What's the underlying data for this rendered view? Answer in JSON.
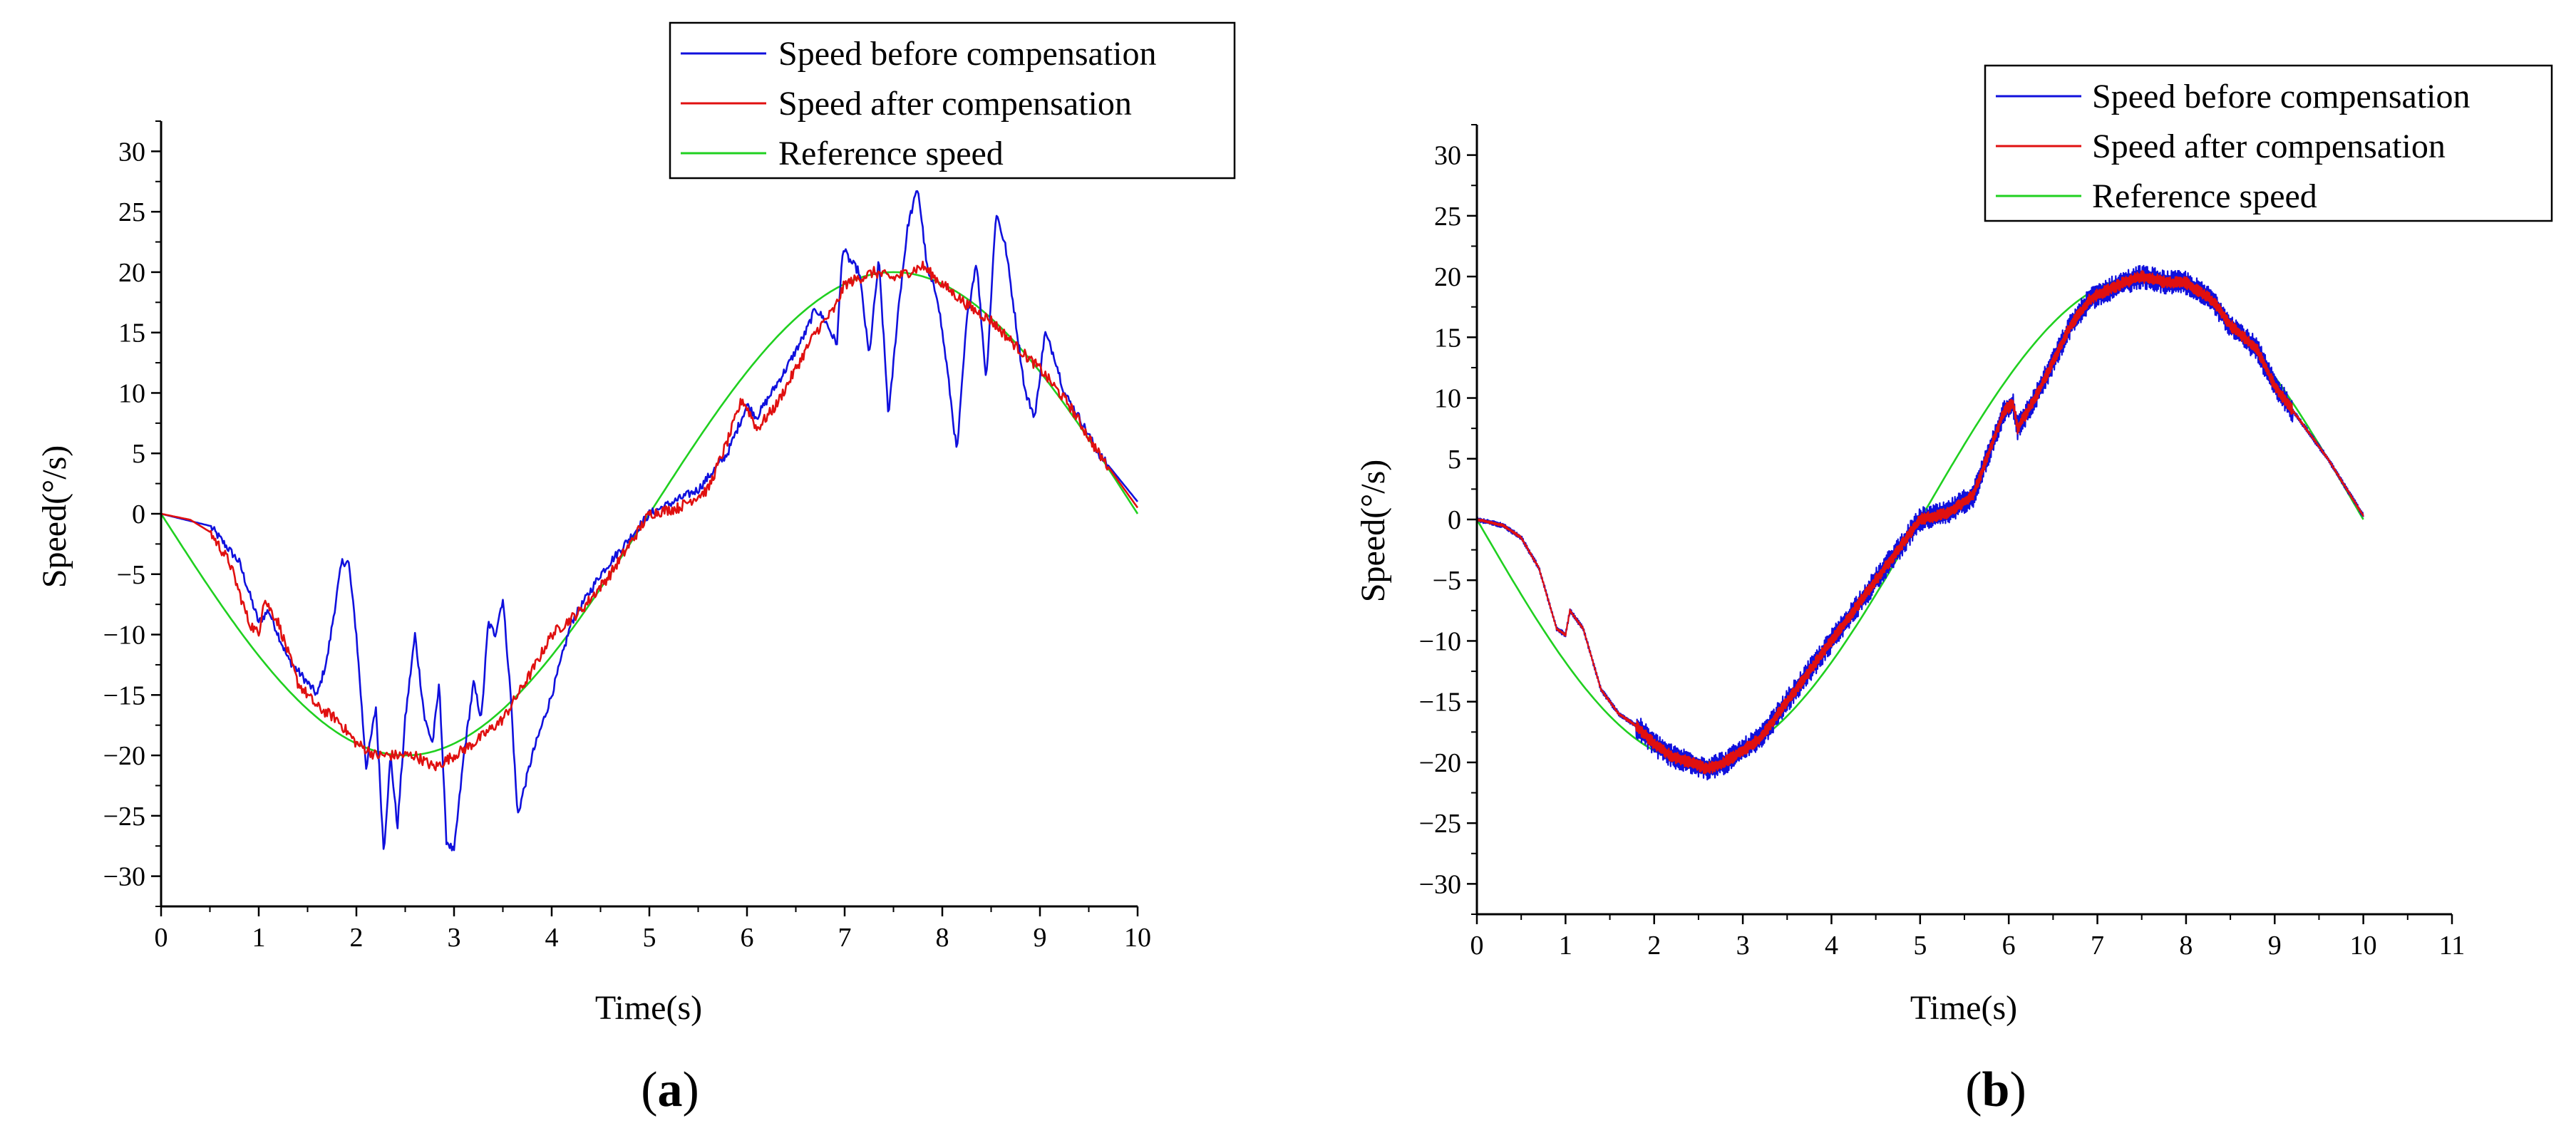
{
  "figure": {
    "panel_labels": [
      {
        "open": "(",
        "letter": "a",
        "close": ")"
      },
      {
        "open": "(",
        "letter": "b",
        "close": ")"
      }
    ]
  },
  "colors": {
    "before": "#1010dd",
    "after": "#e01010",
    "reference": "#20d020"
  },
  "chart_data": [
    {
      "type": "line",
      "panel": "a",
      "xlabel": "Time(s)",
      "ylabel": "Speed(°/s)",
      "xlim": [
        0,
        10
      ],
      "ylim": [
        -32.5,
        32.5
      ],
      "x_ticks": [
        0,
        1,
        2,
        3,
        4,
        5,
        6,
        7,
        8,
        9,
        10
      ],
      "y_ticks": [
        -30,
        -25,
        -20,
        -15,
        -10,
        -5,
        0,
        5,
        10,
        15,
        20,
        25,
        30
      ],
      "legend": {
        "position": "top-right",
        "entries": [
          "Speed before compensation",
          "Speed after compensation",
          "Reference speed"
        ]
      },
      "series": [
        {
          "name": "Speed before compensation",
          "x": [
            0,
            0.5,
            0.8,
            1.0,
            1.1,
            1.3,
            1.6,
            1.7,
            1.85,
            1.92,
            2.0,
            2.1,
            2.2,
            2.28,
            2.35,
            2.42,
            2.5,
            2.6,
            2.7,
            2.78,
            2.85,
            2.92,
            3.0,
            3.1,
            3.2,
            3.28,
            3.35,
            3.42,
            3.5,
            3.58,
            3.65,
            3.8,
            4.0,
            4.2,
            4.5,
            5.0,
            5.5,
            5.8,
            6.0,
            6.1,
            6.4,
            6.6,
            6.7,
            6.8,
            6.92,
            6.98,
            7.05,
            7.15,
            7.25,
            7.35,
            7.45,
            7.55,
            7.65,
            7.75,
            7.85,
            7.95,
            8.05,
            8.15,
            8.25,
            8.35,
            8.45,
            8.55,
            8.65,
            8.75,
            8.85,
            8.95,
            9.05,
            9.15,
            9.25,
            9.4,
            9.6,
            9.8,
            10.0
          ],
          "y": [
            0,
            -1,
            -4,
            -9,
            -8,
            -12,
            -15,
            -12,
            -4,
            -4,
            -10,
            -21,
            -16,
            -28,
            -20,
            -26,
            -17,
            -10,
            -17,
            -19,
            -14,
            -27,
            -28,
            -20,
            -14,
            -17,
            -9,
            -10,
            -7,
            -15,
            -25,
            -20,
            -15,
            -9,
            -5,
            0,
            2,
            5,
            9,
            8,
            12,
            15,
            17,
            16,
            14,
            22,
            21,
            20,
            13,
            21,
            8,
            17,
            24,
            27,
            20,
            18,
            12,
            5,
            16,
            21,
            11,
            25,
            22,
            16,
            10,
            8,
            15,
            13,
            10,
            8,
            5,
            3,
            1
          ]
        },
        {
          "name": "Speed after compensation",
          "x": [
            0,
            0.3,
            0.5,
            0.7,
            0.9,
            1.0,
            1.05,
            1.2,
            1.4,
            1.6,
            1.8,
            2.0,
            2.2,
            2.4,
            2.6,
            2.8,
            3.0,
            3.2,
            3.5,
            3.8,
            4.0,
            4.3,
            4.6,
            5.0,
            5.3,
            5.6,
            5.8,
            5.95,
            6.05,
            6.1,
            6.3,
            6.5,
            6.7,
            6.9,
            7.0,
            7.3,
            7.5,
            7.8,
            8.0,
            8.3,
            8.5,
            8.8,
            9.0,
            9.3,
            9.6,
            10.0
          ],
          "y": [
            0,
            -0.5,
            -1.5,
            -4,
            -9,
            -10,
            -7,
            -9,
            -14,
            -16,
            -17,
            -19,
            -20,
            -20,
            -20,
            -21,
            -20,
            -19,
            -17,
            -13,
            -10,
            -8,
            -5,
            0,
            0.5,
            2,
            6,
            9.5,
            8,
            7,
            9,
            12,
            15,
            17,
            19,
            20,
            19.5,
            20.5,
            19,
            17,
            16,
            13.5,
            12,
            9,
            5,
            0.5
          ]
        },
        {
          "name": "Reference speed",
          "function": "y = -20 sin(2πx/10)",
          "x": [
            0,
            0.5,
            1,
            1.5,
            2,
            2.5,
            3,
            3.5,
            4,
            4.5,
            5,
            5.5,
            6,
            6.5,
            7,
            7.5,
            8,
            8.5,
            9,
            9.5,
            10
          ],
          "y": [
            0,
            -6.18,
            -11.76,
            -16.18,
            -19.02,
            -20,
            -19.02,
            -16.18,
            -11.76,
            -6.18,
            0,
            6.18,
            11.76,
            16.18,
            19.02,
            20,
            19.02,
            16.18,
            11.76,
            6.18,
            0
          ]
        }
      ]
    },
    {
      "type": "line",
      "panel": "b",
      "xlabel": "Time(s)",
      "ylabel": "Speed(°/s)",
      "xlim": [
        0,
        11
      ],
      "ylim": [
        -32.5,
        32.5
      ],
      "x_ticks": [
        0,
        1,
        2,
        3,
        4,
        5,
        6,
        7,
        8,
        9,
        10,
        11
      ],
      "y_ticks": [
        -30,
        -25,
        -20,
        -15,
        -10,
        -5,
        0,
        5,
        10,
        15,
        20,
        25,
        30
      ],
      "legend": {
        "position": "top-right",
        "entries": [
          "Speed before compensation",
          "Speed after compensation",
          "Reference speed"
        ]
      },
      "series": [
        {
          "name": "Speed before compensation",
          "ripple_amplitude": 0.9,
          "x": [
            0,
            0.3,
            0.5,
            0.7,
            0.9,
            1.0,
            1.05,
            1.2,
            1.4,
            1.6,
            1.8,
            2.0,
            2.2,
            2.4,
            2.6,
            2.8,
            3.0,
            3.2,
            3.5,
            3.8,
            4.0,
            4.3,
            4.6,
            5.0,
            5.3,
            5.6,
            5.8,
            5.95,
            6.05,
            6.1,
            6.3,
            6.5,
            6.7,
            6.9,
            7.0,
            7.3,
            7.5,
            7.8,
            8.0,
            8.3,
            8.5,
            8.8,
            9.0,
            9.3,
            9.6,
            10.0
          ],
          "y": [
            0,
            -0.5,
            -1.5,
            -4,
            -9,
            -9.5,
            -7.5,
            -9,
            -14,
            -16,
            -17,
            -18.5,
            -19.5,
            -20,
            -20.5,
            -20,
            -19,
            -18,
            -15,
            -12,
            -10,
            -7,
            -4,
            0,
            0.5,
            2,
            6,
            9,
            9.5,
            7.5,
            10,
            13,
            16,
            18,
            18.5,
            19.5,
            20,
            19.5,
            19.5,
            18,
            16,
            14,
            11,
            8,
            5,
            0.3
          ]
        },
        {
          "name": "Speed after compensation",
          "ripple_amplitude": 0.45,
          "x": [
            0,
            0.3,
            0.5,
            0.7,
            0.9,
            1.0,
            1.05,
            1.2,
            1.4,
            1.6,
            1.8,
            2.0,
            2.2,
            2.4,
            2.6,
            2.8,
            3.0,
            3.2,
            3.5,
            3.8,
            4.0,
            4.3,
            4.6,
            5.0,
            5.3,
            5.6,
            5.8,
            5.95,
            6.05,
            6.1,
            6.3,
            6.5,
            6.7,
            6.9,
            7.0,
            7.3,
            7.5,
            7.8,
            8.0,
            8.3,
            8.5,
            8.8,
            9.0,
            9.3,
            9.6,
            10.0
          ],
          "y": [
            0,
            -0.5,
            -1.5,
            -4,
            -9,
            -9.5,
            -7.5,
            -9,
            -14,
            -16,
            -17,
            -18.5,
            -19.5,
            -20,
            -20.5,
            -20,
            -19,
            -18,
            -15,
            -12,
            -10,
            -7,
            -4,
            0,
            0.5,
            2,
            6,
            9,
            9.5,
            7.5,
            10,
            13,
            16,
            18,
            18.5,
            19.5,
            20,
            19.5,
            19.5,
            18,
            16,
            14,
            11,
            8,
            5,
            0.3
          ]
        },
        {
          "name": "Reference speed",
          "function": "y = -20 sin(2πx/10)",
          "x": [
            0,
            0.5,
            1,
            1.5,
            2,
            2.5,
            3,
            3.5,
            4,
            4.5,
            5,
            5.5,
            6,
            6.5,
            7,
            7.5,
            8,
            8.5,
            9,
            9.5,
            10
          ],
          "y": [
            0,
            -6.18,
            -11.76,
            -16.18,
            -19.02,
            -20,
            -19.02,
            -16.18,
            -11.76,
            -6.18,
            0,
            6.18,
            11.76,
            16.18,
            19.02,
            20,
            19.02,
            16.18,
            11.76,
            6.18,
            0
          ]
        }
      ]
    }
  ]
}
